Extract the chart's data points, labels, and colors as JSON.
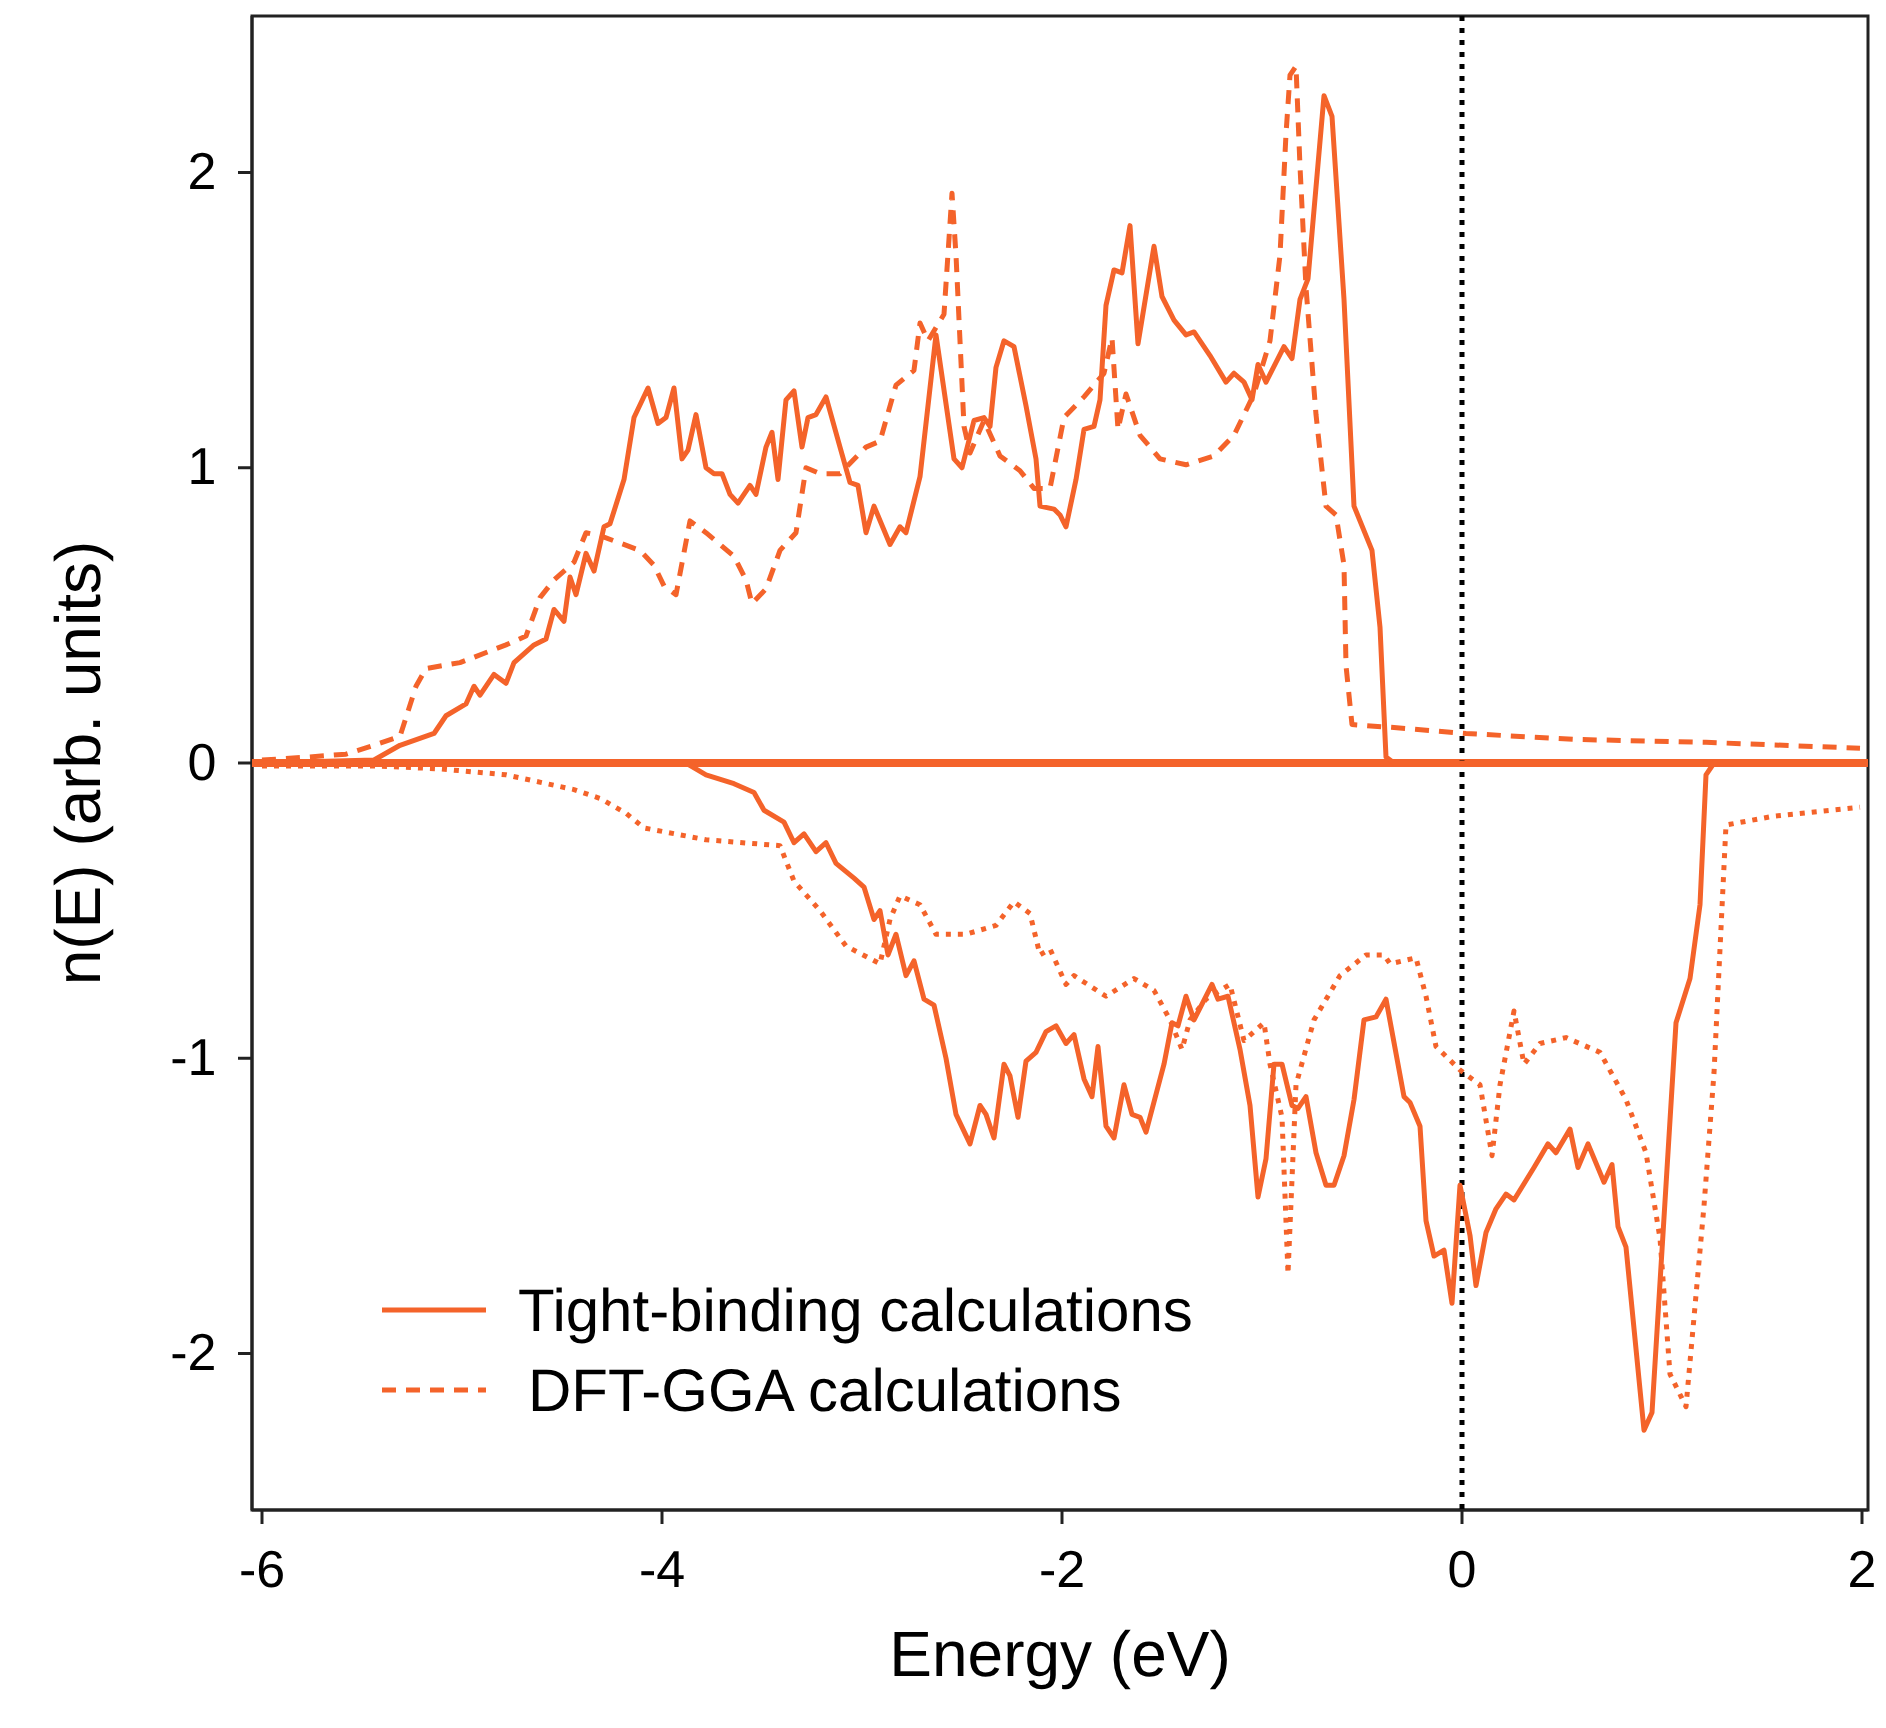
{
  "chart_data": {
    "type": "line",
    "xlabel": "Energy (eV)",
    "ylabel": "n(E) (arb. units)",
    "xlim": [
      -6.05,
      2.03
    ],
    "ylim": [
      -2.53,
      2.53
    ],
    "xticks": [
      -6,
      -4,
      -2,
      0,
      2
    ],
    "yticks": [
      -2,
      -1,
      0,
      1,
      2
    ],
    "grid": false,
    "legend": "bottom left",
    "marker": "none",
    "ref_lines": [
      {
        "axis": "y",
        "value": 0,
        "color": "#f4632a",
        "line_style": "solid"
      },
      {
        "axis": "x",
        "value": 0,
        "color": "#000000",
        "line_style": "dotted"
      }
    ],
    "series": [
      {
        "name": "Tight-binding calculations",
        "color": "#f4632a",
        "line_style": "solid",
        "x": [
          -6,
          -5.44,
          -5.31,
          -5.14,
          -5.08,
          -4.98,
          -4.94,
          -4.91,
          -4.84,
          -4.78,
          -4.74,
          -4.64,
          -4.58,
          -4.54,
          -4.49,
          -4.46,
          -4.43,
          -4.38,
          -4.34,
          -4.29,
          -4.26,
          -4.19,
          -4.14,
          -4.07,
          -4.02,
          -3.98,
          -3.94,
          -3.9,
          -3.87,
          -3.83,
          -3.78,
          -3.74,
          -3.7,
          -3.66,
          -3.62,
          -3.56,
          -3.53,
          -3.48,
          -3.45,
          -3.42,
          -3.38,
          -3.34,
          -3.3,
          -3.27,
          -3.23,
          -3.18,
          -3.11,
          -3.06,
          -3.02,
          -2.98,
          -2.94,
          -2.86,
          -2.81,
          -2.78,
          -2.71,
          -2.63,
          -2.54,
          -2.5,
          -2.44,
          -2.39,
          -2.36,
          -2.33,
          -2.29,
          -2.24,
          -2.18,
          -2.13,
          -2.11,
          -2.04,
          -2.01,
          -1.98,
          -1.93,
          -1.89,
          -1.84,
          -1.81,
          -1.78,
          -1.74,
          -1.7,
          -1.66,
          -1.62,
          -1.54,
          -1.5,
          -1.44,
          -1.38,
          -1.34,
          -1.26,
          -1.18,
          -1.14,
          -1.09,
          -1.05,
          -1.02,
          -0.98,
          -0.89,
          -0.85,
          -0.81,
          -0.77,
          -0.69,
          -0.65,
          -0.59,
          -0.54,
          -0.45,
          -0.41,
          -0.38,
          -0.34,
          2
        ],
        "values": [
          0,
          0.01,
          0.06,
          0.1,
          0.16,
          0.2,
          0.26,
          0.23,
          0.3,
          0.27,
          0.34,
          0.4,
          0.42,
          0.52,
          0.48,
          0.63,
          0.57,
          0.71,
          0.65,
          0.8,
          0.81,
          0.96,
          1.17,
          1.27,
          1.15,
          1.17,
          1.27,
          1.03,
          1.06,
          1.18,
          1,
          0.98,
          0.98,
          0.91,
          0.88,
          0.94,
          0.91,
          1.07,
          1.12,
          0.96,
          1.23,
          1.26,
          1.07,
          1.17,
          1.18,
          1.24,
          1.07,
          0.95,
          0.94,
          0.78,
          0.87,
          0.74,
          0.8,
          0.78,
          0.97,
          1.45,
          1.03,
          1,
          1.16,
          1.17,
          1.14,
          1.34,
          1.43,
          1.41,
          1.21,
          1.03,
          0.87,
          0.86,
          0.84,
          0.8,
          0.96,
          1.13,
          1.14,
          1.23,
          1.55,
          1.67,
          1.66,
          1.82,
          1.42,
          1.75,
          1.58,
          1.5,
          1.45,
          1.46,
          1.38,
          1.29,
          1.32,
          1.29,
          1.23,
          1.35,
          1.29,
          1.41,
          1.37,
          1.57,
          1.64,
          2.26,
          2.19,
          1.57,
          0.87,
          0.72,
          0.46,
          0.02,
          0,
          0
        ]
      },
      {
        "name": "DFT-GGA calculations",
        "color": "#f4632a",
        "line_style": "dashed",
        "x": [
          -6,
          -5.77,
          -5.58,
          -5.44,
          -5.31,
          -5.23,
          -5.18,
          -5.01,
          -4.78,
          -4.68,
          -4.61,
          -4.54,
          -4.44,
          -4.38,
          -4.31,
          -4.11,
          -4.04,
          -3.99,
          -3.93,
          -3.86,
          -3.78,
          -3.64,
          -3.58,
          -3.55,
          -3.48,
          -3.41,
          -3.33,
          -3.28,
          -3.21,
          -3.11,
          -2.98,
          -2.91,
          -2.83,
          -2.74,
          -2.71,
          -2.67,
          -2.59,
          -2.55,
          -2.53,
          -2.49,
          -2.46,
          -2.39,
          -2.31,
          -2.21,
          -2.14,
          -2.06,
          -1.99,
          -1.89,
          -1.79,
          -1.75,
          -1.72,
          -1.68,
          -1.61,
          -1.51,
          -1.38,
          -1.24,
          -1.14,
          -1.04,
          -0.96,
          -0.91,
          -0.88,
          -0.86,
          -0.83,
          -0.81,
          -0.78,
          -0.73,
          -0.68,
          -0.63,
          -0.59,
          -0.58,
          -0.55,
          -0.34,
          0.02,
          0.56,
          1.22,
          1.99
        ],
        "values": [
          0.01,
          0.02,
          0.03,
          0.06,
          0.09,
          0.26,
          0.32,
          0.34,
          0.4,
          0.43,
          0.56,
          0.62,
          0.68,
          0.78,
          0.77,
          0.72,
          0.67,
          0.6,
          0.57,
          0.82,
          0.78,
          0.7,
          0.62,
          0.54,
          0.59,
          0.72,
          0.78,
          1,
          0.98,
          0.98,
          1.07,
          1.09,
          1.28,
          1.33,
          1.49,
          1.43,
          1.52,
          1.93,
          1.72,
          1.14,
          1.05,
          1.16,
          1.04,
          0.99,
          0.93,
          0.93,
          1.17,
          1.24,
          1.32,
          1.44,
          1.13,
          1.25,
          1.11,
          1.03,
          1.01,
          1.04,
          1.11,
          1.25,
          1.43,
          1.72,
          2.13,
          2.33,
          2.36,
          2.02,
          1.61,
          1.18,
          0.87,
          0.84,
          0.67,
          0.33,
          0.13,
          0.12,
          0.1,
          0.08,
          0.07,
          0.05
        ]
      },
      {
        "color": "#f4632a",
        "line_style": "solid",
        "x": [
          -6,
          -3.88,
          -3.78,
          -3.64,
          -3.54,
          -3.49,
          -3.39,
          -3.34,
          -3.29,
          -3.23,
          -3.18,
          -3.13,
          -3.04,
          -2.99,
          -2.94,
          -2.91,
          -2.87,
          -2.83,
          -2.78,
          -2.74,
          -2.69,
          -2.64,
          -2.58,
          -2.53,
          -2.46,
          -2.41,
          -2.38,
          -2.34,
          -2.29,
          -2.26,
          -2.22,
          -2.18,
          -2.13,
          -2.08,
          -2.03,
          -1.98,
          -1.94,
          -1.89,
          -1.85,
          -1.82,
          -1.78,
          -1.74,
          -1.69,
          -1.65,
          -1.61,
          -1.58,
          -1.49,
          -1.45,
          -1.42,
          -1.38,
          -1.34,
          -1.25,
          -1.22,
          -1.17,
          -1.11,
          -1.06,
          -1.02,
          -0.98,
          -0.94,
          -0.9,
          -0.85,
          -0.82,
          -0.78,
          -0.73,
          -0.68,
          -0.64,
          -0.59,
          -0.54,
          -0.49,
          -0.43,
          -0.38,
          -0.29,
          -0.26,
          -0.21,
          -0.18,
          -0.14,
          -0.09,
          -0.05,
          -0.01,
          0.04,
          0.07,
          0.12,
          0.17,
          0.22,
          0.26,
          0.36,
          0.43,
          0.47,
          0.54,
          0.58,
          0.63,
          0.71,
          0.75,
          0.78,
          0.82,
          0.91,
          0.95,
          1.07,
          1.14,
          1.19,
          1.22,
          1.26,
          2
        ],
        "values": [
          0,
          0,
          -0.04,
          -0.07,
          -0.1,
          -0.16,
          -0.2,
          -0.27,
          -0.24,
          -0.3,
          -0.27,
          -0.34,
          -0.39,
          -0.42,
          -0.53,
          -0.5,
          -0.65,
          -0.58,
          -0.72,
          -0.67,
          -0.8,
          -0.82,
          -1,
          -1.19,
          -1.29,
          -1.16,
          -1.19,
          -1.27,
          -1.02,
          -1.06,
          -1.2,
          -1.01,
          -0.98,
          -0.91,
          -0.89,
          -0.95,
          -0.92,
          -1.07,
          -1.13,
          -0.96,
          -1.23,
          -1.27,
          -1.09,
          -1.19,
          -1.2,
          -1.25,
          -1.02,
          -0.88,
          -0.89,
          -0.79,
          -0.87,
          -0.75,
          -0.8,
          -0.79,
          -0.97,
          -1.16,
          -1.47,
          -1.34,
          -1.02,
          -1.02,
          -1.16,
          -1.17,
          -1.13,
          -1.32,
          -1.43,
          -1.43,
          -1.33,
          -1.14,
          -0.87,
          -0.86,
          -0.8,
          -1.13,
          -1.15,
          -1.23,
          -1.55,
          -1.67,
          -1.65,
          -1.83,
          -1.43,
          -1.6,
          -1.77,
          -1.59,
          -1.51,
          -1.46,
          -1.48,
          -1.37,
          -1.29,
          -1.32,
          -1.24,
          -1.37,
          -1.29,
          -1.42,
          -1.36,
          -1.57,
          -1.64,
          -2.26,
          -2.2,
          -0.88,
          -0.73,
          -0.48,
          -0.04,
          0,
          0
        ]
      },
      {
        "color": "#f4632a",
        "line_style": "dotted",
        "x": [
          -6,
          -5.43,
          -5.11,
          -4.78,
          -4.44,
          -4.31,
          -4.18,
          -4.09,
          -3.78,
          -3.41,
          -3.34,
          -3.21,
          -3.08,
          -2.91,
          -2.86,
          -2.81,
          -2.71,
          -2.63,
          -2.48,
          -2.33,
          -2.24,
          -2.16,
          -2.11,
          -2.06,
          -1.98,
          -1.94,
          -1.78,
          -1.64,
          -1.54,
          -1.46,
          -1.4,
          -1.36,
          -1.28,
          -1.16,
          -1.09,
          -0.99,
          -0.96,
          -0.9,
          -0.87,
          -0.83,
          -0.74,
          -0.61,
          -0.48,
          -0.39,
          -0.36,
          -0.23,
          -0.18,
          -0.13,
          -0.01,
          0.09,
          0.15,
          0.19,
          0.26,
          0.31,
          0.39,
          0.52,
          0.69,
          0.82,
          0.92,
          0.99,
          1.04,
          1.12,
          1.21,
          1.26,
          1.32,
          1.56,
          1.99
        ],
        "values": [
          -0.01,
          -0.01,
          -0.02,
          -0.04,
          -0.09,
          -0.12,
          -0.17,
          -0.22,
          -0.26,
          -0.28,
          -0.4,
          -0.5,
          -0.62,
          -0.68,
          -0.53,
          -0.45,
          -0.48,
          -0.58,
          -0.58,
          -0.55,
          -0.47,
          -0.51,
          -0.65,
          -0.63,
          -0.75,
          -0.72,
          -0.79,
          -0.73,
          -0.77,
          -0.87,
          -0.97,
          -0.87,
          -0.8,
          -0.75,
          -0.94,
          -0.88,
          -1.02,
          -1.2,
          -1.73,
          -1.09,
          -0.87,
          -0.72,
          -0.65,
          -0.65,
          -0.68,
          -0.66,
          -0.79,
          -0.96,
          -1.04,
          -1.09,
          -1.33,
          -1.09,
          -0.84,
          -1.02,
          -0.95,
          -0.93,
          -0.98,
          -1.14,
          -1.32,
          -1.61,
          -2.07,
          -2.18,
          -1.5,
          -1.05,
          -0.21,
          -0.18,
          -0.15
        ]
      }
    ]
  }
}
